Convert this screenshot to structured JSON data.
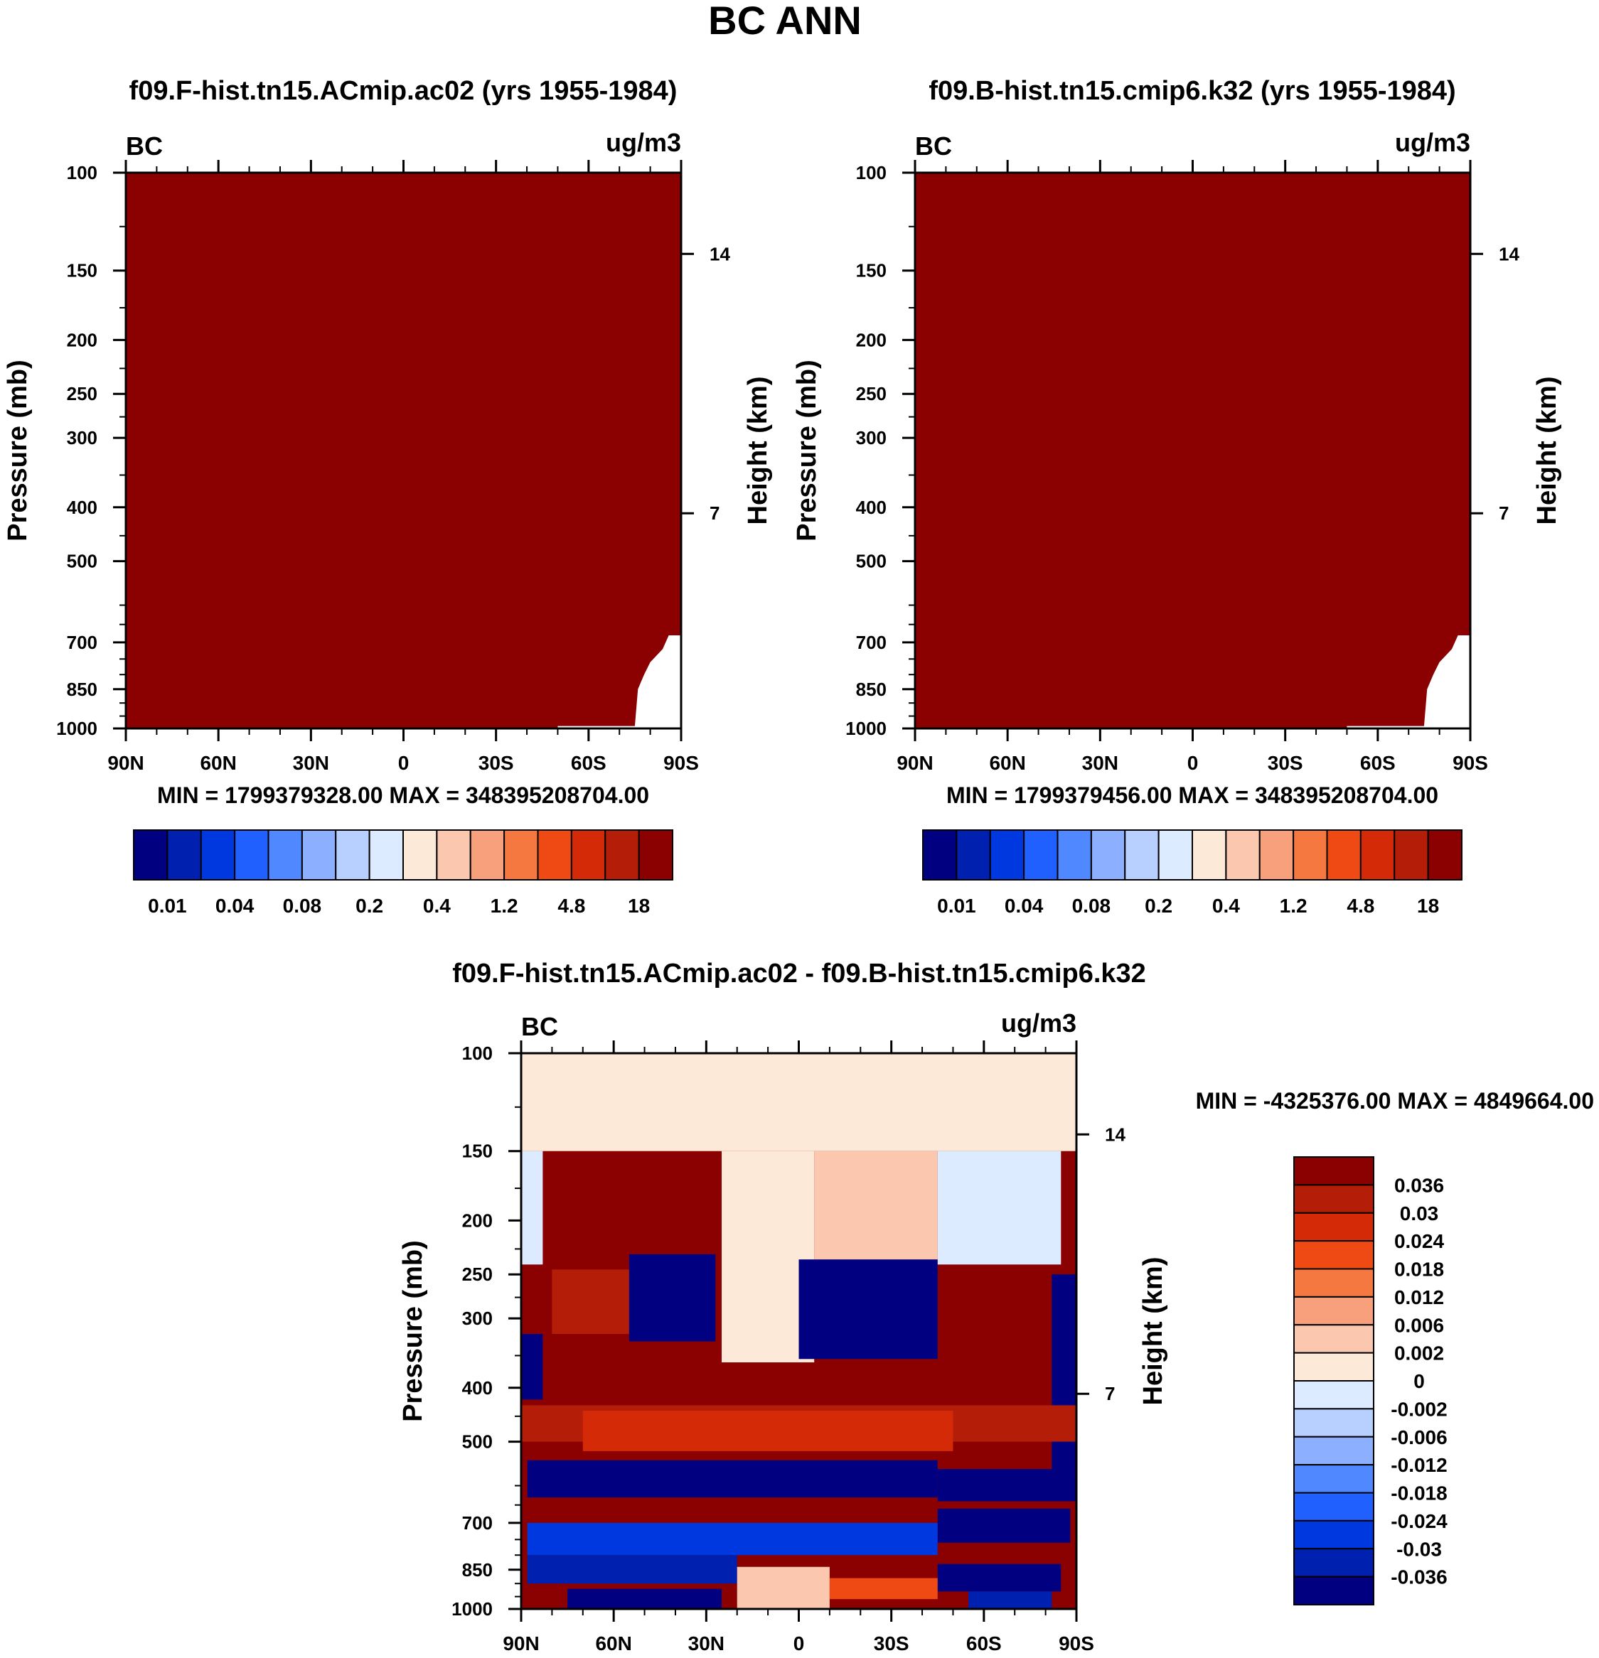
{
  "title": "BC ANN",
  "colors": {
    "sequential": [
      "#000080",
      "#0020b0",
      "#0038e0",
      "#2060ff",
      "#5088ff",
      "#8cb0ff",
      "#b8d0ff",
      "#dcebff",
      "#fde9d8",
      "#fbc7ae",
      "#f8a07c",
      "#f57840",
      "#f04a14",
      "#d42a08",
      "#b41e08",
      "#8b0000"
    ],
    "difference": [
      "#8b0000",
      "#b41e08",
      "#d42a08",
      "#f04a14",
      "#f57840",
      "#f8a07c",
      "#fbc7ae",
      "#fde9d8",
      "#dcebff",
      "#b8d0ff",
      "#8cb0ff",
      "#5088ff",
      "#2060ff",
      "#0038e0",
      "#0020b0",
      "#000080"
    ],
    "missing": "#ffffff"
  },
  "chart_data": [
    {
      "id": "panel-left",
      "type": "heatmap",
      "title": "f09.F-hist.tn15.ACmip.ac02 (yrs 1955-1984)",
      "variable": "BC",
      "units": "ug/m3",
      "ylabel": "Pressure (mb)",
      "ylabel_right": "Height (km)",
      "x_ticks": [
        "90N",
        "60N",
        "30N",
        "0",
        "30S",
        "60S",
        "90S"
      ],
      "x_range": [
        90,
        -90
      ],
      "y_ticks": [
        100,
        150,
        200,
        250,
        300,
        400,
        500,
        700,
        850,
        1000
      ],
      "y_range": [
        100,
        1000
      ],
      "height_ticks": [
        {
          "km": 14,
          "p": 140
        },
        {
          "km": 7,
          "p": 410
        }
      ],
      "field": "uniform maximum level (>18) over the entire domain except small missing area near 90S below ~680 mb",
      "stats": "MIN = 1799379328.00  MAX = 348395208704.00",
      "colorbar_labels": [
        "0.01",
        "0.04",
        "0.08",
        "0.2",
        "0.4",
        "1.2",
        "4.8",
        "18"
      ]
    },
    {
      "id": "panel-right",
      "type": "heatmap",
      "title": "f09.B-hist.tn15.cmip6.k32 (yrs 1955-1984)",
      "variable": "BC",
      "units": "ug/m3",
      "ylabel": "Pressure (mb)",
      "ylabel_right": "Height (km)",
      "x_ticks": [
        "90N",
        "60N",
        "30N",
        "0",
        "30S",
        "60S",
        "90S"
      ],
      "x_range": [
        90,
        -90
      ],
      "y_ticks": [
        100,
        150,
        200,
        250,
        300,
        400,
        500,
        700,
        850,
        1000
      ],
      "y_range": [
        100,
        1000
      ],
      "height_ticks": [
        {
          "km": 14,
          "p": 140
        },
        {
          "km": 7,
          "p": 410
        }
      ],
      "field": "uniform maximum level (>18) over the entire domain except small missing area near 90S below ~680 mb",
      "stats": "MIN = 1799379456.00  MAX = 348395208704.00",
      "colorbar_labels": [
        "0.01",
        "0.04",
        "0.08",
        "0.2",
        "0.4",
        "1.2",
        "4.8",
        "18"
      ]
    },
    {
      "id": "panel-diff",
      "type": "heatmap",
      "title": "f09.F-hist.tn15.ACmip.ac02 - f09.B-hist.tn15.cmip6.k32",
      "variable": "BC",
      "units": "ug/m3",
      "ylabel": "Pressure (mb)",
      "ylabel_right": "Height (km)",
      "x_ticks": [
        "90N",
        "60N",
        "30N",
        "0",
        "30S",
        "60S",
        "90S"
      ],
      "x_range": [
        90,
        -90
      ],
      "y_ticks": [
        100,
        150,
        200,
        250,
        300,
        400,
        500,
        700,
        850,
        1000
      ],
      "y_range": [
        100,
        1000
      ],
      "height_ticks": [
        {
          "km": 14,
          "p": 140
        },
        {
          "km": 7,
          "p": 410
        }
      ],
      "stats": "MIN = -4325376.00  MAX = 4849664.00",
      "colorbar_labels": [
        "0.036",
        "0.03",
        "0.024",
        "0.018",
        "0.012",
        "0.006",
        "0.002",
        "0",
        "-0.002",
        "-0.006",
        "-0.012",
        "-0.018",
        "-0.024",
        "-0.03",
        "-0.036"
      ],
      "regions": [
        {
          "lat": [
            90,
            -90
          ],
          "p": [
            100,
            150
          ],
          "level": 7
        },
        {
          "lat": [
            90,
            -90
          ],
          "p": [
            150,
            1000
          ],
          "level": 0
        },
        {
          "lat": [
            90,
            83
          ],
          "p": [
            150,
            240
          ],
          "level": 8
        },
        {
          "lat": [
            25,
            -5
          ],
          "p": [
            150,
            360
          ],
          "level": 7
        },
        {
          "lat": [
            -5,
            -45
          ],
          "p": [
            150,
            240
          ],
          "level": 6
        },
        {
          "lat": [
            -45,
            -85
          ],
          "p": [
            150,
            240
          ],
          "level": 8
        },
        {
          "lat": [
            80,
            55
          ],
          "p": [
            245,
            320
          ],
          "level": 1
        },
        {
          "lat": [
            55,
            27
          ],
          "p": [
            230,
            330
          ],
          "level": 15
        },
        {
          "lat": [
            0,
            -45
          ],
          "p": [
            235,
            355
          ],
          "level": 15
        },
        {
          "lat": [
            90,
            83
          ],
          "p": [
            320,
            420
          ],
          "level": 15
        },
        {
          "lat": [
            -82,
            -90
          ],
          "p": [
            250,
            560
          ],
          "level": 15
        },
        {
          "lat": [
            90,
            -90
          ],
          "p": [
            430,
            500
          ],
          "level": 1
        },
        {
          "lat": [
            70,
            -50
          ],
          "p": [
            440,
            520
          ],
          "level": 2
        },
        {
          "lat": [
            88,
            -45
          ],
          "p": [
            540,
            630
          ],
          "level": 15
        },
        {
          "lat": [
            -45,
            -90
          ],
          "p": [
            560,
            640
          ],
          "level": 15
        },
        {
          "lat": [
            -45,
            -88
          ],
          "p": [
            660,
            760
          ],
          "level": 15
        },
        {
          "lat": [
            88,
            -45
          ],
          "p": [
            700,
            800
          ],
          "level": 13
        },
        {
          "lat": [
            88,
            20
          ],
          "p": [
            800,
            900
          ],
          "level": 14
        },
        {
          "lat": [
            -45,
            -85
          ],
          "p": [
            830,
            930
          ],
          "level": 15
        },
        {
          "lat": [
            20,
            -10
          ],
          "p": [
            840,
            1000
          ],
          "level": 6
        },
        {
          "lat": [
            -10,
            -45
          ],
          "p": [
            880,
            960
          ],
          "level": 3
        },
        {
          "lat": [
            75,
            25
          ],
          "p": [
            920,
            1000
          ],
          "level": 15
        },
        {
          "lat": [
            -55,
            -82
          ],
          "p": [
            930,
            1000
          ],
          "level": 14
        }
      ]
    }
  ]
}
